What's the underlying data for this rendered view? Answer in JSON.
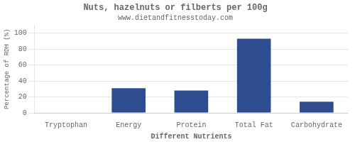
{
  "chart_data": {
    "type": "bar",
    "title": "Nuts, hazelnuts or filberts per 100g",
    "subtitle": "www.dietandfitnesstoday.com",
    "xlabel": "Different Nutrients",
    "ylabel": "Percentage of RDH (%)",
    "categories": [
      "Tryptophan",
      "Energy",
      "Protein",
      "Total Fat",
      "Carbohydrate"
    ],
    "values": [
      0.5,
      31,
      28,
      93,
      14
    ],
    "color": "#2e4d8f",
    "ylim": [
      0,
      110
    ],
    "yticks": [
      0,
      20,
      40,
      60,
      80,
      100
    ],
    "grid": "y"
  }
}
